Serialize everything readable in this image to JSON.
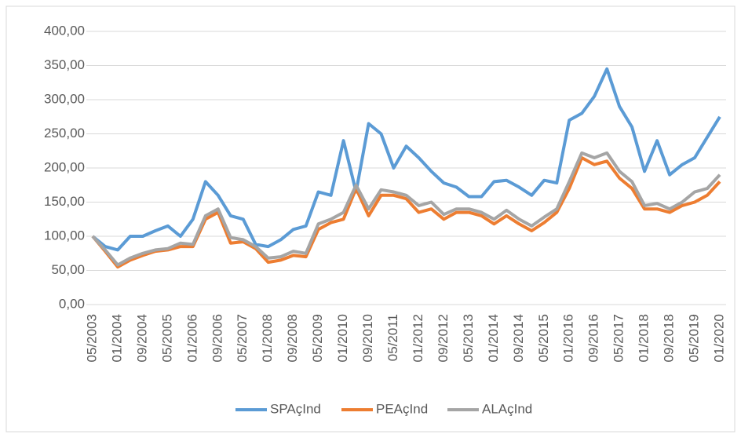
{
  "chart_data": {
    "type": "line",
    "categories": [
      "05/2003",
      null,
      "01/2004",
      null,
      "09/2004",
      null,
      "05/2005",
      null,
      "01/2006",
      null,
      "09/2006",
      null,
      "05/2007",
      null,
      "01/2008",
      null,
      "09/2008",
      null,
      "05/2009",
      null,
      "01/2010",
      null,
      "09/2010",
      null,
      "05/2011",
      null,
      "01/2012",
      null,
      "09/2012",
      null,
      "05/2013",
      null,
      "01/2014",
      null,
      "09/2014",
      null,
      "05/2015",
      null,
      "01/2016",
      null,
      "09/2016",
      null,
      "05/2017",
      null,
      "01/2018",
      null,
      "09/2018",
      null,
      "05/2019",
      null,
      "01/2020"
    ],
    "series": [
      {
        "name": "SPAçInd",
        "color": "#5b9bd5",
        "values": [
          100,
          85,
          80,
          100,
          100,
          108,
          115,
          100,
          125,
          180,
          160,
          130,
          125,
          88,
          85,
          95,
          110,
          115,
          165,
          160,
          240,
          165,
          265,
          250,
          200,
          232,
          215,
          195,
          178,
          172,
          158,
          158,
          180,
          182,
          172,
          160,
          182,
          178,
          270,
          280,
          305,
          345,
          290,
          260,
          195,
          240,
          190,
          205,
          215,
          245,
          275
        ]
      },
      {
        "name": "PEAçInd",
        "color": "#ed7d31",
        "values": [
          100,
          78,
          55,
          65,
          72,
          78,
          80,
          85,
          85,
          125,
          135,
          90,
          92,
          82,
          62,
          65,
          72,
          70,
          110,
          120,
          125,
          170,
          130,
          160,
          160,
          155,
          135,
          140,
          125,
          135,
          135,
          130,
          118,
          130,
          118,
          108,
          120,
          135,
          170,
          215,
          205,
          210,
          185,
          170,
          140,
          140,
          135,
          145,
          150,
          160,
          180
        ]
      },
      {
        "name": "ALAçInd",
        "color": "#a5a5a5",
        "values": [
          100,
          80,
          58,
          68,
          75,
          80,
          82,
          90,
          88,
          130,
          140,
          98,
          95,
          85,
          68,
          70,
          78,
          75,
          118,
          125,
          135,
          175,
          140,
          168,
          165,
          160,
          145,
          150,
          132,
          140,
          140,
          135,
          125,
          138,
          125,
          115,
          128,
          140,
          180,
          222,
          215,
          222,
          195,
          180,
          145,
          148,
          140,
          150,
          165,
          170,
          190
        ]
      }
    ],
    "ylim": [
      0,
      400
    ],
    "yticks": [
      {
        "value": 0,
        "label": "0,00"
      },
      {
        "value": 50,
        "label": "50,00"
      },
      {
        "value": 100,
        "label": "100,00"
      },
      {
        "value": 150,
        "label": "150,00"
      },
      {
        "value": 200,
        "label": "200,00"
      },
      {
        "value": 250,
        "label": "250,00"
      },
      {
        "value": 300,
        "label": "300,00"
      },
      {
        "value": 350,
        "label": "350,00"
      },
      {
        "value": 400,
        "label": "400,00"
      }
    ],
    "grid": true,
    "legend": "bottom"
  }
}
